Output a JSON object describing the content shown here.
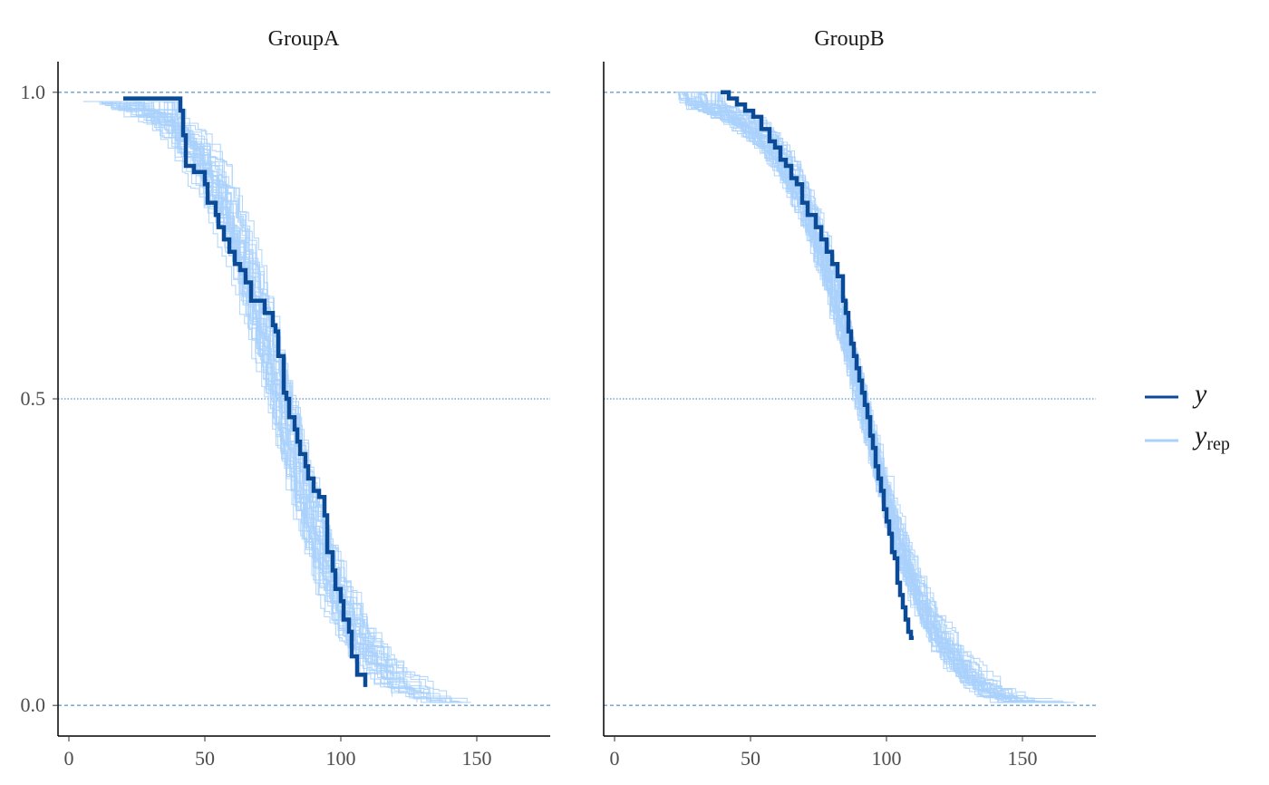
{
  "colors": {
    "y": "#0a4a97",
    "yrep": "#a9d1fb",
    "ref_line": "#2f7bbf",
    "axis": "#000000"
  },
  "legend": {
    "y_label": "y",
    "yrep_label": "y",
    "yrep_subscript": "rep"
  },
  "chart_data": [
    {
      "type": "line",
      "title": "GroupA",
      "xlim": [
        -4,
        177
      ],
      "ylim": [
        -0.05,
        1.05
      ],
      "x_ticks": [
        "0",
        "50",
        "100",
        "150"
      ],
      "y_ticks": [
        "0.0",
        "0.5",
        "1.0"
      ],
      "reference_lines": [
        0,
        0.5,
        1
      ],
      "n_replicates": 40,
      "y_range_x": [
        20,
        110
      ],
      "yrep_range_x": [
        5,
        152
      ],
      "series": [
        {
          "name": "y",
          "step_points": [
            [
              20,
              0.99
            ],
            [
              40,
              0.99
            ],
            [
              41,
              0.97
            ],
            [
              42,
              0.93
            ],
            [
              43,
              0.88
            ],
            [
              46,
              0.87
            ],
            [
              50,
              0.85
            ],
            [
              51,
              0.82
            ],
            [
              54,
              0.8
            ],
            [
              55,
              0.78
            ],
            [
              57,
              0.76
            ],
            [
              59,
              0.74
            ],
            [
              61,
              0.72
            ],
            [
              63,
              0.71
            ],
            [
              65,
              0.69
            ],
            [
              67,
              0.66
            ],
            [
              70,
              0.66
            ],
            [
              72,
              0.64
            ],
            [
              75,
              0.62
            ],
            [
              76,
              0.61
            ],
            [
              77,
              0.57
            ],
            [
              79,
              0.51
            ],
            [
              80,
              0.5
            ],
            [
              81,
              0.47
            ],
            [
              83,
              0.45
            ],
            [
              84,
              0.43
            ],
            [
              85,
              0.41
            ],
            [
              87,
              0.39
            ],
            [
              88,
              0.37
            ],
            [
              90,
              0.35
            ],
            [
              92,
              0.34
            ],
            [
              94,
              0.31
            ],
            [
              95,
              0.25
            ],
            [
              97,
              0.22
            ],
            [
              98,
              0.19
            ],
            [
              100,
              0.17
            ],
            [
              101,
              0.14
            ],
            [
              103,
              0.12
            ],
            [
              104,
              0.08
            ],
            [
              106,
              0.05
            ],
            [
              109,
              0.03
            ]
          ]
        },
        {
          "name": "y_rep",
          "pattern": "40 replicated step curves, smooth sigmoid decline from ~1.0 near x=5–40 to ~0.0 near x=110–152, median crossing 0.5 around x=77"
        }
      ]
    },
    {
      "type": "line",
      "title": "GroupB",
      "xlim": [
        -4,
        177
      ],
      "ylim": [
        -0.05,
        1.05
      ],
      "x_ticks": [
        "0",
        "50",
        "100",
        "150"
      ],
      "y_ticks": [],
      "reference_lines": [
        0,
        0.5,
        1
      ],
      "n_replicates": 40,
      "y_range_x": [
        39,
        110
      ],
      "yrep_range_x": [
        22,
        170
      ],
      "series": [
        {
          "name": "y",
          "step_points": [
            [
              39,
              1.0
            ],
            [
              42,
              0.99
            ],
            [
              45,
              0.98
            ],
            [
              48,
              0.97
            ],
            [
              51,
              0.96
            ],
            [
              54,
              0.94
            ],
            [
              57,
              0.92
            ],
            [
              59,
              0.91
            ],
            [
              61,
              0.89
            ],
            [
              63,
              0.88
            ],
            [
              65,
              0.86
            ],
            [
              67,
              0.85
            ],
            [
              69,
              0.82
            ],
            [
              71,
              0.8
            ],
            [
              74,
              0.78
            ],
            [
              76,
              0.76
            ],
            [
              78,
              0.74
            ],
            [
              80,
              0.72
            ],
            [
              82,
              0.7
            ],
            [
              84,
              0.66
            ],
            [
              85,
              0.64
            ],
            [
              86,
              0.61
            ],
            [
              87,
              0.59
            ],
            [
              88,
              0.57
            ],
            [
              89,
              0.55
            ],
            [
              90,
              0.53
            ],
            [
              91,
              0.51
            ],
            [
              92,
              0.49
            ],
            [
              93,
              0.47
            ],
            [
              94,
              0.44
            ],
            [
              95,
              0.42
            ],
            [
              96,
              0.39
            ],
            [
              97,
              0.37
            ],
            [
              98,
              0.35
            ],
            [
              99,
              0.32
            ],
            [
              100,
              0.3
            ],
            [
              101,
              0.28
            ],
            [
              102,
              0.25
            ],
            [
              103,
              0.24
            ],
            [
              104,
              0.2
            ],
            [
              105,
              0.18
            ],
            [
              106,
              0.16
            ],
            [
              107,
              0.14
            ],
            [
              108,
              0.12
            ],
            [
              109,
              0.11
            ],
            [
              110,
              0.11
            ]
          ]
        },
        {
          "name": "y_rep",
          "pattern": "40 replicated step curves, smooth sigmoid from ~1.0 near x=22–40 to ~0.0 near x=130–170, median crossing 0.5 around x=90"
        }
      ]
    }
  ]
}
